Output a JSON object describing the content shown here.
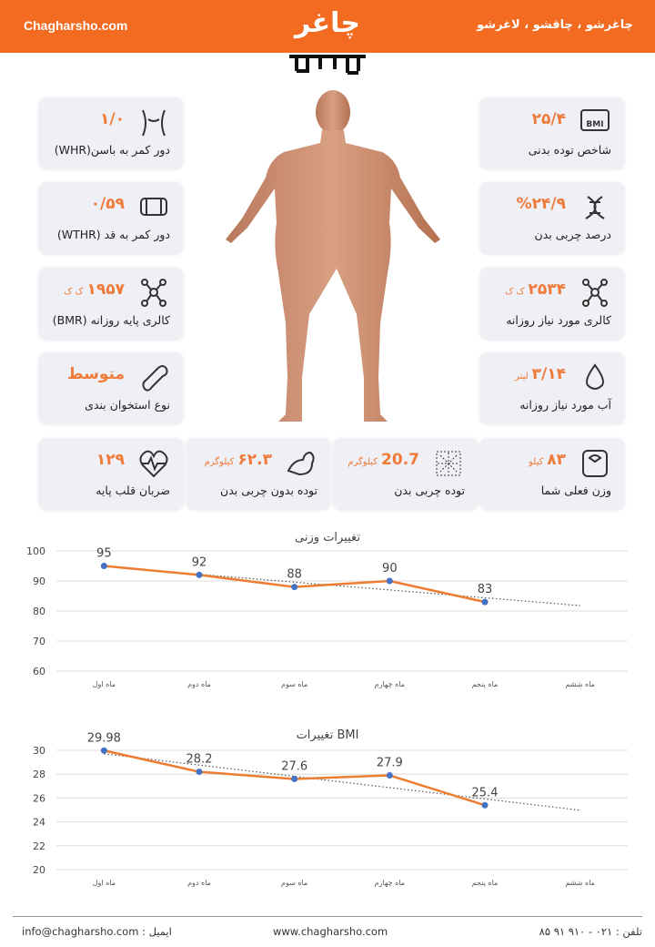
{
  "header": {
    "site": "Chagharsho.com",
    "slogan": "چاغرشو ، چاقشو ، لاغرشو",
    "logo": "چاغر"
  },
  "cards": [
    {
      "value": "۲۵/۴",
      "label": "شاخص توده بدنی"
    },
    {
      "value": "%۲۴/۹",
      "label": "درصد چربی بدن"
    },
    {
      "value": "۲۵۳۴",
      "unit": "ک ک",
      "label": "کالری مورد نیاز روزانه"
    },
    {
      "value": "۳/۱۴",
      "unit": "لیتر",
      "label": "آب مورد نیاز روزانه"
    },
    {
      "value": "۱/۰",
      "label": "دور کمر به باسن(WHR)"
    },
    {
      "value": "۰/۵۹",
      "label": "دور کمر به قد (WTHR)"
    },
    {
      "value": "۱۹۵۷",
      "unit": "ک ک",
      "label": "کالری پایه روزانه (BMR)"
    },
    {
      "value": "متوسط",
      "label": "نوع استخوان بندی"
    },
    {
      "value": "۸۳",
      "unit": "کیلو",
      "label": "وزن فعلی شما"
    },
    {
      "value": "20.7",
      "unit": "کیلوگرم",
      "label": "توده چربی بدن"
    },
    {
      "value": "۶۲.۳",
      "unit": "کیلوگرم",
      "label": "توده بدون چربی بدن"
    },
    {
      "value": "۱۲۹",
      "label": "ضربان قلب پایه"
    }
  ],
  "chart_data": [
    {
      "type": "line",
      "title": "تغییرات وزنی",
      "categories": [
        "ماه اول",
        "ماه دوم",
        "ماه سوم",
        "ماه چهارم",
        "ماه پنجم",
        "ماه ششم"
      ],
      "values": [
        95,
        92,
        88,
        90,
        83,
        null
      ],
      "color": "#ed7d31",
      "marker_color": "#4472c4",
      "trendline": true,
      "ylim": [
        60,
        100
      ],
      "yticks": [
        60,
        70,
        80,
        90,
        100
      ],
      "grid": true
    },
    {
      "type": "line",
      "title": "تغییرات BMI",
      "categories": [
        "ماه اول",
        "ماه دوم",
        "ماه سوم",
        "ماه چهارم",
        "ماه پنجم",
        "ماه ششم"
      ],
      "values": [
        29.98,
        28.2,
        27.6,
        27.9,
        25.4,
        null
      ],
      "color": "#ed7d31",
      "marker_color": "#4472c4",
      "trendline": true,
      "ylim": [
        20,
        30
      ],
      "yticks": [
        20,
        22,
        24,
        26,
        28,
        30
      ],
      "grid": true
    }
  ],
  "footer": {
    "phone": "تلفن : ۰۲۱ - ۹۱۰ ۹۱ ۸۵",
    "web": "www.chagharsho.com",
    "email": "ایمیل : info@chagharsho.com"
  }
}
